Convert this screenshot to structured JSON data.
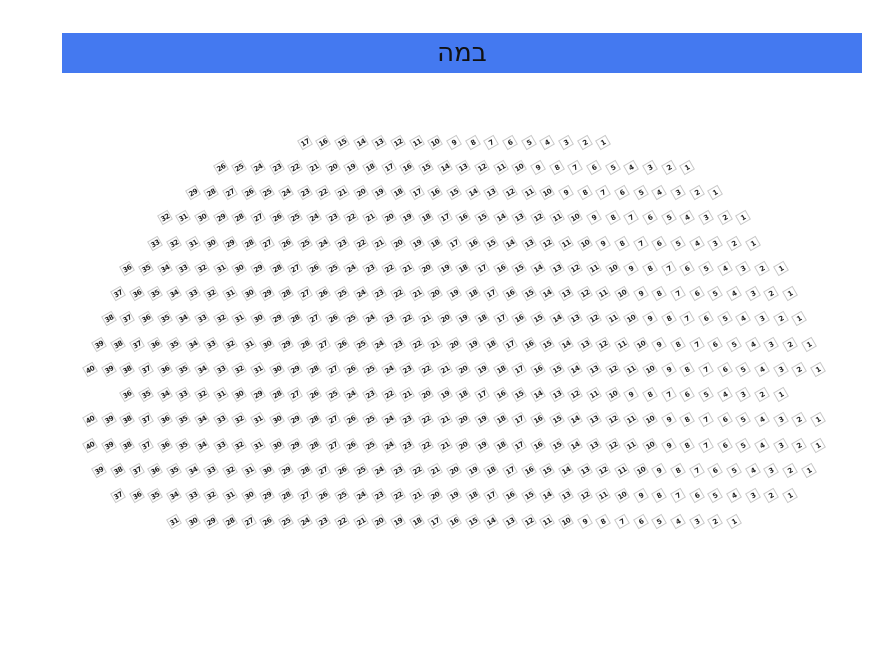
{
  "stage": {
    "label": "במה",
    "color": "#4479f0"
  },
  "seating": {
    "seat_border_color": "#c8c8c8",
    "numbering": "right-to-left, 1 at right",
    "rows": [
      {
        "count": 17
      },
      {
        "count": 26
      },
      {
        "count": 29
      },
      {
        "count": 32
      },
      {
        "count": 33
      },
      {
        "count": 36
      },
      {
        "count": 37
      },
      {
        "count": 38
      },
      {
        "count": 39
      },
      {
        "count": 40
      },
      {
        "count": 36
      },
      {
        "count": 40
      },
      {
        "count": 40
      },
      {
        "count": 39
      },
      {
        "count": 37
      },
      {
        "count": 31
      }
    ]
  }
}
